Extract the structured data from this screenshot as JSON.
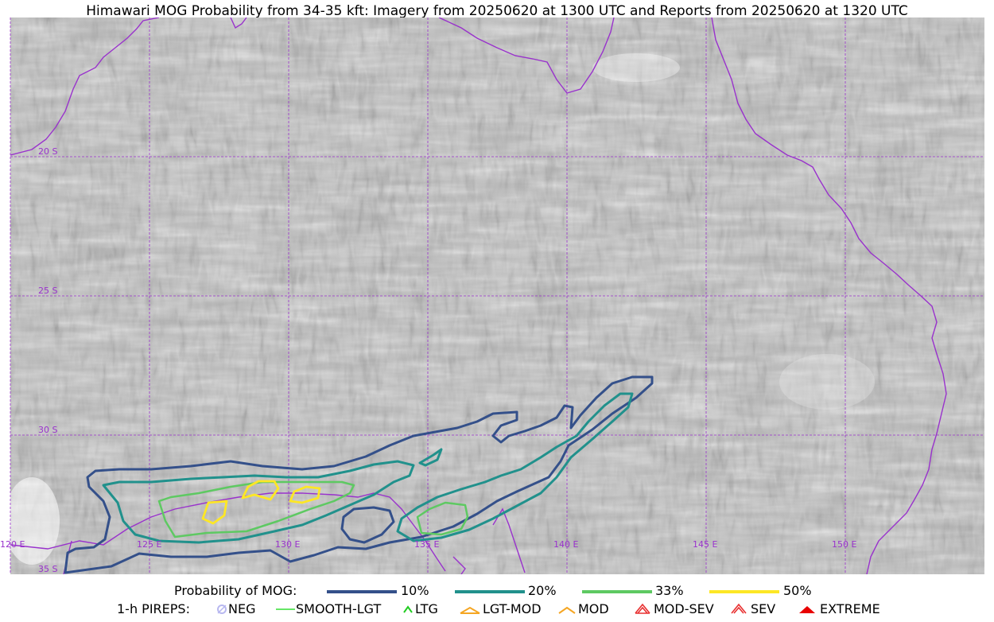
{
  "title": "Himawari MOG Probability from 34-35 kft: Imagery from 20250620 at 1300 UTC and Reports from 20250620 at 1320 UTC",
  "map": {
    "lat_labels": [
      "20 S",
      "25 S",
      "30 S",
      "35 S"
    ],
    "lon_labels": [
      "120 E",
      "125 E",
      "130 E",
      "135 E",
      "140 E",
      "145 E",
      "150 E"
    ],
    "colors": {
      "grid": "#9932cc",
      "coast": "#9932cc",
      "p10": "#34508a",
      "p20": "#21918c",
      "p33": "#5ec962",
      "p50": "#fde725"
    }
  },
  "legend": {
    "probability": {
      "label": "Probability of MOG:",
      "items": [
        {
          "label": "10%",
          "color": "#34508a"
        },
        {
          "label": "20%",
          "color": "#21918c"
        },
        {
          "label": "33%",
          "color": "#5ec962"
        },
        {
          "label": "50%",
          "color": "#fde725"
        }
      ]
    },
    "pireps": {
      "label": "1-h PIREPS:",
      "items": [
        {
          "label": "NEG",
          "icon": "neg-icon",
          "color": "#b8b8f0"
        },
        {
          "label": "SMOOTH-LGT",
          "icon": "smooth-lgt-icon",
          "color": "#33dd33"
        },
        {
          "label": "LTG",
          "icon": "ltg-icon",
          "color": "#22cc22"
        },
        {
          "label": "LGT-MOD",
          "icon": "lgt-mod-icon",
          "color": "#f5a623"
        },
        {
          "label": "MOD",
          "icon": "mod-icon",
          "color": "#f5a623"
        },
        {
          "label": "MOD-SEV",
          "icon": "mod-sev-icon",
          "color": "#e83030"
        },
        {
          "label": "SEV",
          "icon": "sev-icon",
          "color": "#e83030"
        },
        {
          "label": "EXTREME",
          "icon": "extreme-icon",
          "color": "#e80000"
        }
      ]
    }
  }
}
